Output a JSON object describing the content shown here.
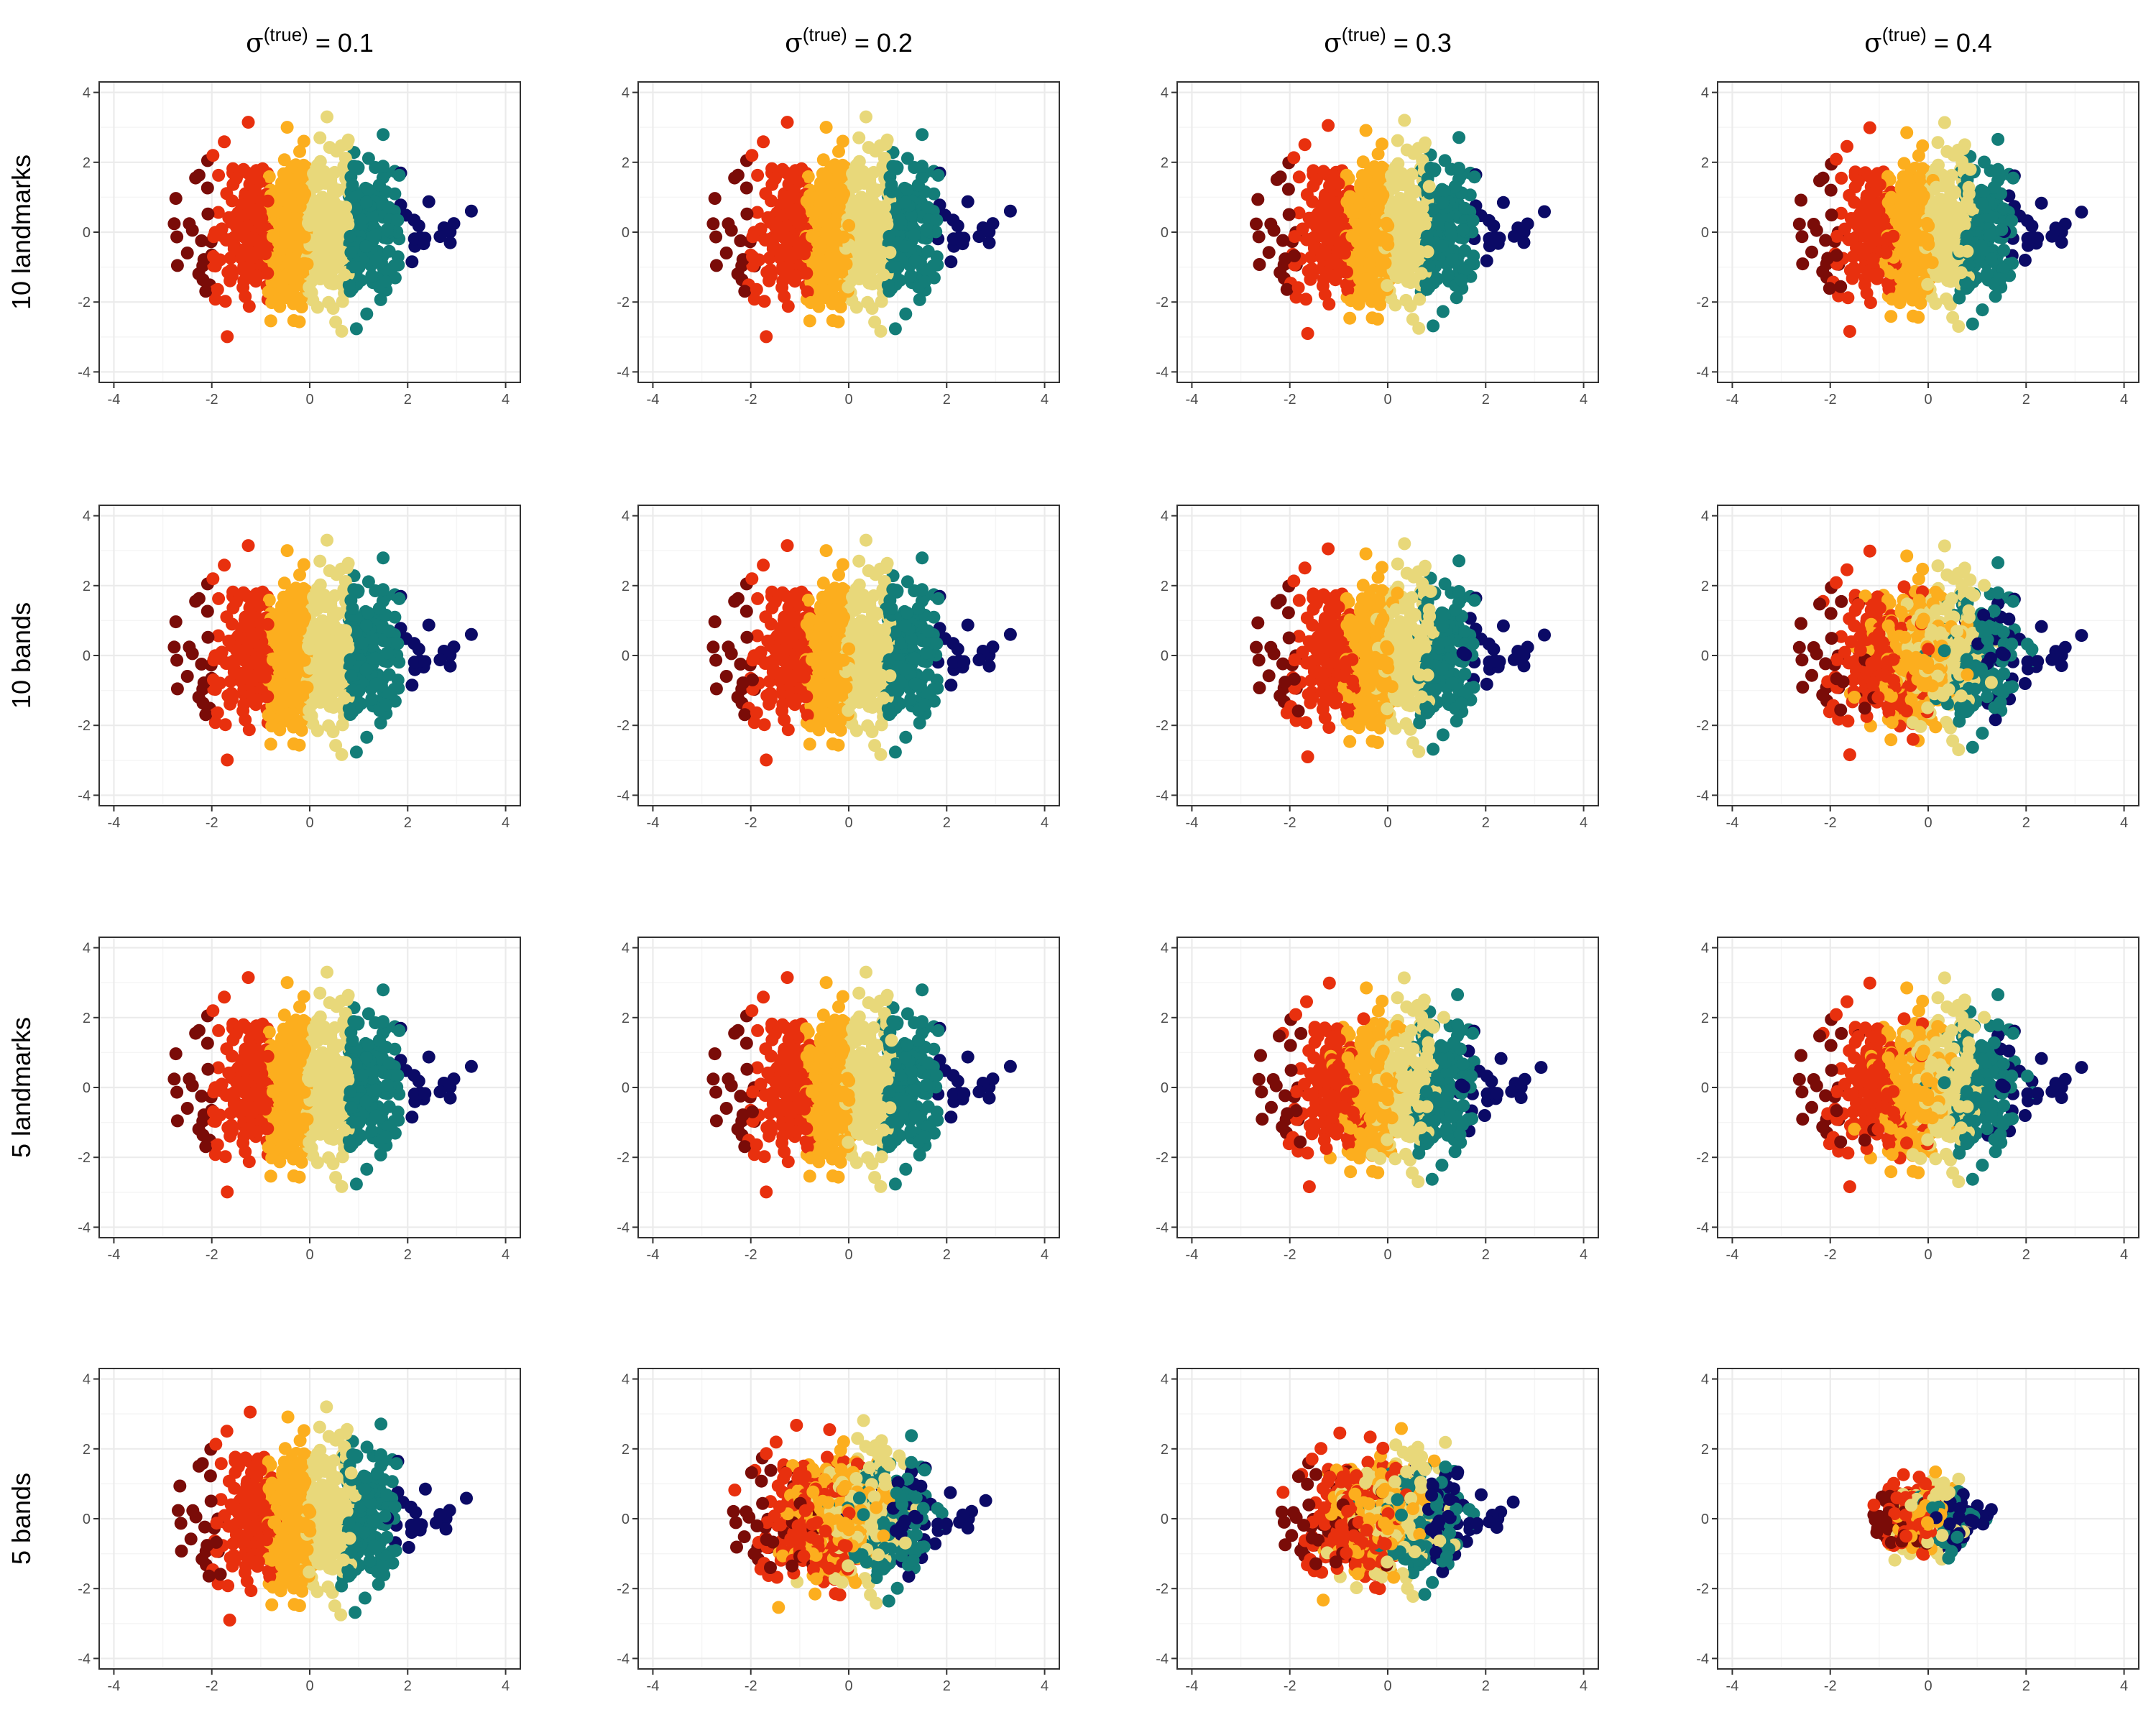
{
  "figure": {
    "column_titles": [
      {
        "sigma": "σ",
        "sup": "(true)",
        "rest": " = 0.1"
      },
      {
        "sigma": "σ",
        "sup": "(true)",
        "rest": " = 0.2"
      },
      {
        "sigma": "σ",
        "sup": "(true)",
        "rest": " = 0.3"
      },
      {
        "sigma": "σ",
        "sup": "(true)",
        "rest": " = 0.4"
      }
    ],
    "row_titles": [
      "10 landmarks",
      "10 bands",
      "5 landmarks",
      "5 bands"
    ]
  },
  "colors": {
    "palette": [
      "#7a0c08",
      "#e8300e",
      "#fcae1e",
      "#e8d87a",
      "#137d78",
      "#0b0a66"
    ],
    "grid_major": "#ebebeb",
    "grid_minor": "#f5f5f5",
    "panel_border": "#333333",
    "tick_text": "#4d4d4d"
  },
  "chart_data": {
    "type": "scatter",
    "layout": "4x4 facet grid",
    "xlim": [
      -4.3,
      4.3
    ],
    "ylim": [
      -4.3,
      4.3
    ],
    "x_ticks": [
      -4,
      -2,
      0,
      2,
      4
    ],
    "y_ticks": [
      -4,
      -2,
      0,
      2,
      4
    ],
    "x_tick_labels": [
      "-4",
      "-2",
      "0",
      "2",
      "4"
    ],
    "y_tick_labels": [
      "-4",
      "-2",
      "0",
      "2",
      "4"
    ],
    "grid": true,
    "n_points_per_panel": 1000,
    "color_groups": 6,
    "panels": [
      {
        "row": "10 landmarks",
        "sigma": 0.1,
        "color_noise": 0.0,
        "scale": 1.0
      },
      {
        "row": "10 landmarks",
        "sigma": 0.2,
        "color_noise": 0.04,
        "scale": 1.0
      },
      {
        "row": "10 landmarks",
        "sigma": 0.3,
        "color_noise": 0.08,
        "scale": 0.97
      },
      {
        "row": "10 landmarks",
        "sigma": 0.4,
        "color_noise": 0.12,
        "scale": 0.95
      },
      {
        "row": "10 bands",
        "sigma": 0.1,
        "color_noise": 0.0,
        "scale": 1.0
      },
      {
        "row": "10 bands",
        "sigma": 0.2,
        "color_noise": 0.05,
        "scale": 1.0
      },
      {
        "row": "10 bands",
        "sigma": 0.3,
        "color_noise": 0.15,
        "scale": 0.97
      },
      {
        "row": "10 bands",
        "sigma": 0.4,
        "color_noise": 0.45,
        "scale": 0.95
      },
      {
        "row": "5 landmarks",
        "sigma": 0.1,
        "color_noise": 0.0,
        "scale": 1.0
      },
      {
        "row": "5 landmarks",
        "sigma": 0.2,
        "color_noise": 0.08,
        "scale": 1.0
      },
      {
        "row": "5 landmarks",
        "sigma": 0.3,
        "color_noise": 0.22,
        "scale": 0.95
      },
      {
        "row": "5 landmarks",
        "sigma": 0.4,
        "color_noise": 0.32,
        "scale": 0.95
      },
      {
        "row": "5 bands",
        "sigma": 0.1,
        "color_noise": 0.1,
        "scale": 0.97
      },
      {
        "row": "5 bands",
        "sigma": 0.2,
        "color_noise": 0.6,
        "scale": 0.85
      },
      {
        "row": "5 bands",
        "sigma": 0.3,
        "color_noise": 0.75,
        "scale": 0.78
      },
      {
        "row": "5 bands",
        "sigma": 0.4,
        "color_noise": 0.9,
        "scale": 0.4
      }
    ]
  }
}
